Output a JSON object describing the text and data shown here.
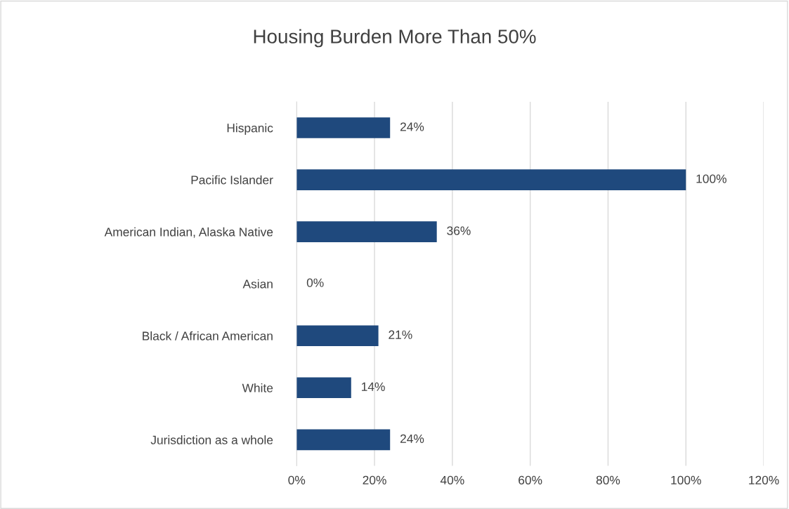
{
  "chart_data": {
    "type": "bar",
    "orientation": "horizontal",
    "title": "Housing Burden More Than 50%",
    "categories": [
      "Hispanic",
      "Pacific Islander",
      "American Indian, Alaska Native",
      "Asian",
      "Black / African American",
      "White",
      "Jurisdiction as a whole"
    ],
    "values": [
      24,
      100,
      36,
      0,
      21,
      14,
      24
    ],
    "value_labels": [
      "24%",
      "100%",
      "36%",
      "0%",
      "21%",
      "14%",
      "24%"
    ],
    "color": "#1f497d",
    "xlim": [
      0,
      120
    ],
    "xticks": [
      {
        "value": 0,
        "label": "0%"
      },
      {
        "value": 20,
        "label": "20%"
      },
      {
        "value": 40,
        "label": "40%"
      },
      {
        "value": 60,
        "label": "60%"
      },
      {
        "value": 80,
        "label": "80%"
      },
      {
        "value": 100,
        "label": "100%"
      },
      {
        "value": 120,
        "label": "120%"
      }
    ],
    "grid": "x",
    "legend": false
  }
}
